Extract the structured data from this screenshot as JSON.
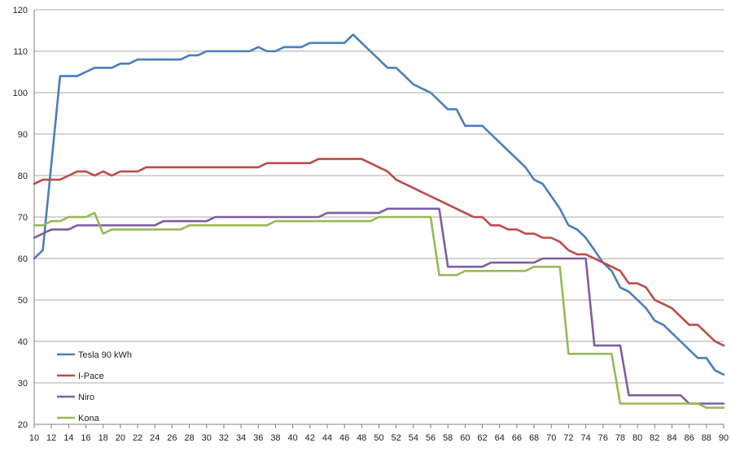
{
  "chart_data": {
    "type": "line",
    "title": "",
    "xlabel": "",
    "ylabel": "",
    "xlim": [
      10,
      90
    ],
    "ylim": [
      20,
      120
    ],
    "yticks": [
      20,
      30,
      40,
      50,
      60,
      70,
      80,
      90,
      100,
      110,
      120
    ],
    "xticks": [
      10,
      12,
      14,
      16,
      18,
      20,
      22,
      24,
      26,
      28,
      30,
      32,
      34,
      36,
      38,
      40,
      42,
      44,
      46,
      48,
      50,
      52,
      54,
      56,
      58,
      60,
      62,
      64,
      66,
      68,
      70,
      72,
      74,
      76,
      78,
      80,
      82,
      84,
      86,
      88,
      90
    ],
    "grid": "horizontal",
    "legend_position": "bottom-left",
    "series": [
      {
        "name": "Tesla 90 kWh",
        "color": "#4a7ebb",
        "points": [
          [
            10,
            60
          ],
          [
            11,
            62
          ],
          [
            12,
            83
          ],
          [
            13,
            104
          ],
          [
            14,
            104
          ],
          [
            15,
            104
          ],
          [
            16,
            105
          ],
          [
            17,
            106
          ],
          [
            18,
            106
          ],
          [
            19,
            106
          ],
          [
            20,
            107
          ],
          [
            21,
            107
          ],
          [
            22,
            108
          ],
          [
            23,
            108
          ],
          [
            24,
            108
          ],
          [
            25,
            108
          ],
          [
            26,
            108
          ],
          [
            27,
            108
          ],
          [
            28,
            109
          ],
          [
            29,
            109
          ],
          [
            30,
            110
          ],
          [
            31,
            110
          ],
          [
            32,
            110
          ],
          [
            33,
            110
          ],
          [
            34,
            110
          ],
          [
            35,
            110
          ],
          [
            36,
            111
          ],
          [
            37,
            110
          ],
          [
            38,
            110
          ],
          [
            39,
            111
          ],
          [
            40,
            111
          ],
          [
            41,
            111
          ],
          [
            42,
            112
          ],
          [
            43,
            112
          ],
          [
            44,
            112
          ],
          [
            45,
            112
          ],
          [
            46,
            112
          ],
          [
            47,
            114
          ],
          [
            48,
            112
          ],
          [
            49,
            110
          ],
          [
            50,
            108
          ],
          [
            51,
            106
          ],
          [
            52,
            106
          ],
          [
            53,
            104
          ],
          [
            54,
            102
          ],
          [
            55,
            101
          ],
          [
            56,
            100
          ],
          [
            57,
            98
          ],
          [
            58,
            96
          ],
          [
            59,
            96
          ],
          [
            60,
            92
          ],
          [
            61,
            92
          ],
          [
            62,
            92
          ],
          [
            63,
            90
          ],
          [
            64,
            88
          ],
          [
            65,
            86
          ],
          [
            66,
            84
          ],
          [
            67,
            82
          ],
          [
            68,
            79
          ],
          [
            69,
            78
          ],
          [
            70,
            75
          ],
          [
            71,
            72
          ],
          [
            72,
            68
          ],
          [
            73,
            67
          ],
          [
            74,
            65
          ],
          [
            75,
            62
          ],
          [
            76,
            59
          ],
          [
            77,
            57
          ],
          [
            78,
            53
          ],
          [
            79,
            52
          ],
          [
            80,
            50
          ],
          [
            81,
            48
          ],
          [
            82,
            45
          ],
          [
            83,
            44
          ],
          [
            84,
            42
          ],
          [
            85,
            40
          ],
          [
            86,
            38
          ],
          [
            87,
            36
          ],
          [
            88,
            36
          ],
          [
            89,
            33
          ],
          [
            90,
            32
          ]
        ]
      },
      {
        "name": "I-Pace",
        "color": "#be4b48",
        "points": [
          [
            10,
            78
          ],
          [
            11,
            79
          ],
          [
            12,
            79
          ],
          [
            13,
            79
          ],
          [
            14,
            80
          ],
          [
            15,
            81
          ],
          [
            16,
            81
          ],
          [
            17,
            80
          ],
          [
            18,
            81
          ],
          [
            19,
            80
          ],
          [
            20,
            81
          ],
          [
            21,
            81
          ],
          [
            22,
            81
          ],
          [
            23,
            82
          ],
          [
            24,
            82
          ],
          [
            25,
            82
          ],
          [
            26,
            82
          ],
          [
            27,
            82
          ],
          [
            28,
            82
          ],
          [
            29,
            82
          ],
          [
            30,
            82
          ],
          [
            31,
            82
          ],
          [
            32,
            82
          ],
          [
            33,
            82
          ],
          [
            34,
            82
          ],
          [
            35,
            82
          ],
          [
            36,
            82
          ],
          [
            37,
            83
          ],
          [
            38,
            83
          ],
          [
            39,
            83
          ],
          [
            40,
            83
          ],
          [
            41,
            83
          ],
          [
            42,
            83
          ],
          [
            43,
            84
          ],
          [
            44,
            84
          ],
          [
            45,
            84
          ],
          [
            46,
            84
          ],
          [
            47,
            84
          ],
          [
            48,
            84
          ],
          [
            49,
            83
          ],
          [
            50,
            82
          ],
          [
            51,
            81
          ],
          [
            52,
            79
          ],
          [
            53,
            78
          ],
          [
            54,
            77
          ],
          [
            55,
            76
          ],
          [
            56,
            75
          ],
          [
            57,
            74
          ],
          [
            58,
            73
          ],
          [
            59,
            72
          ],
          [
            60,
            71
          ],
          [
            61,
            70
          ],
          [
            62,
            70
          ],
          [
            63,
            68
          ],
          [
            64,
            68
          ],
          [
            65,
            67
          ],
          [
            66,
            67
          ],
          [
            67,
            66
          ],
          [
            68,
            66
          ],
          [
            69,
            65
          ],
          [
            70,
            65
          ],
          [
            71,
            64
          ],
          [
            72,
            62
          ],
          [
            73,
            61
          ],
          [
            74,
            61
          ],
          [
            75,
            60
          ],
          [
            76,
            59
          ],
          [
            77,
            58
          ],
          [
            78,
            57
          ],
          [
            79,
            54
          ],
          [
            80,
            54
          ],
          [
            81,
            53
          ],
          [
            82,
            50
          ],
          [
            83,
            49
          ],
          [
            84,
            48
          ],
          [
            85,
            46
          ],
          [
            86,
            44
          ],
          [
            87,
            44
          ],
          [
            88,
            42
          ],
          [
            89,
            40
          ],
          [
            90,
            39
          ]
        ]
      },
      {
        "name": "Niro",
        "color": "#7d5fa0",
        "points": [
          [
            10,
            65
          ],
          [
            11,
            66
          ],
          [
            12,
            67
          ],
          [
            13,
            67
          ],
          [
            14,
            67
          ],
          [
            15,
            68
          ],
          [
            16,
            68
          ],
          [
            17,
            68
          ],
          [
            18,
            68
          ],
          [
            19,
            68
          ],
          [
            20,
            68
          ],
          [
            21,
            68
          ],
          [
            22,
            68
          ],
          [
            23,
            68
          ],
          [
            24,
            68
          ],
          [
            25,
            69
          ],
          [
            26,
            69
          ],
          [
            27,
            69
          ],
          [
            28,
            69
          ],
          [
            29,
            69
          ],
          [
            30,
            69
          ],
          [
            31,
            70
          ],
          [
            32,
            70
          ],
          [
            33,
            70
          ],
          [
            34,
            70
          ],
          [
            35,
            70
          ],
          [
            36,
            70
          ],
          [
            37,
            70
          ],
          [
            38,
            70
          ],
          [
            39,
            70
          ],
          [
            40,
            70
          ],
          [
            41,
            70
          ],
          [
            42,
            70
          ],
          [
            43,
            70
          ],
          [
            44,
            71
          ],
          [
            45,
            71
          ],
          [
            46,
            71
          ],
          [
            47,
            71
          ],
          [
            48,
            71
          ],
          [
            49,
            71
          ],
          [
            50,
            71
          ],
          [
            51,
            72
          ],
          [
            52,
            72
          ],
          [
            53,
            72
          ],
          [
            54,
            72
          ],
          [
            55,
            72
          ],
          [
            56,
            72
          ],
          [
            57,
            72
          ],
          [
            58,
            58
          ],
          [
            59,
            58
          ],
          [
            60,
            58
          ],
          [
            61,
            58
          ],
          [
            62,
            58
          ],
          [
            63,
            59
          ],
          [
            64,
            59
          ],
          [
            65,
            59
          ],
          [
            66,
            59
          ],
          [
            67,
            59
          ],
          [
            68,
            59
          ],
          [
            69,
            60
          ],
          [
            70,
            60
          ],
          [
            71,
            60
          ],
          [
            72,
            60
          ],
          [
            73,
            60
          ],
          [
            74,
            60
          ],
          [
            75,
            39
          ],
          [
            76,
            39
          ],
          [
            77,
            39
          ],
          [
            78,
            39
          ],
          [
            79,
            27
          ],
          [
            80,
            27
          ],
          [
            81,
            27
          ],
          [
            82,
            27
          ],
          [
            83,
            27
          ],
          [
            84,
            27
          ],
          [
            85,
            27
          ],
          [
            86,
            25
          ],
          [
            87,
            25
          ],
          [
            88,
            25
          ],
          [
            89,
            25
          ],
          [
            90,
            25
          ]
        ]
      },
      {
        "name": "Kona",
        "color": "#98b954",
        "points": [
          [
            10,
            68
          ],
          [
            11,
            68
          ],
          [
            12,
            69
          ],
          [
            13,
            69
          ],
          [
            14,
            70
          ],
          [
            15,
            70
          ],
          [
            16,
            70
          ],
          [
            17,
            71
          ],
          [
            18,
            66
          ],
          [
            19,
            67
          ],
          [
            20,
            67
          ],
          [
            21,
            67
          ],
          [
            22,
            67
          ],
          [
            23,
            67
          ],
          [
            24,
            67
          ],
          [
            25,
            67
          ],
          [
            26,
            67
          ],
          [
            27,
            67
          ],
          [
            28,
            68
          ],
          [
            29,
            68
          ],
          [
            30,
            68
          ],
          [
            31,
            68
          ],
          [
            32,
            68
          ],
          [
            33,
            68
          ],
          [
            34,
            68
          ],
          [
            35,
            68
          ],
          [
            36,
            68
          ],
          [
            37,
            68
          ],
          [
            38,
            69
          ],
          [
            39,
            69
          ],
          [
            40,
            69
          ],
          [
            41,
            69
          ],
          [
            42,
            69
          ],
          [
            43,
            69
          ],
          [
            44,
            69
          ],
          [
            45,
            69
          ],
          [
            46,
            69
          ],
          [
            47,
            69
          ],
          [
            48,
            69
          ],
          [
            49,
            69
          ],
          [
            50,
            70
          ],
          [
            51,
            70
          ],
          [
            52,
            70
          ],
          [
            53,
            70
          ],
          [
            54,
            70
          ],
          [
            55,
            70
          ],
          [
            56,
            70
          ],
          [
            57,
            56
          ],
          [
            58,
            56
          ],
          [
            59,
            56
          ],
          [
            60,
            57
          ],
          [
            61,
            57
          ],
          [
            62,
            57
          ],
          [
            63,
            57
          ],
          [
            64,
            57
          ],
          [
            65,
            57
          ],
          [
            66,
            57
          ],
          [
            67,
            57
          ],
          [
            68,
            58
          ],
          [
            69,
            58
          ],
          [
            70,
            58
          ],
          [
            71,
            58
          ],
          [
            72,
            37
          ],
          [
            73,
            37
          ],
          [
            74,
            37
          ],
          [
            75,
            37
          ],
          [
            76,
            37
          ],
          [
            77,
            37
          ],
          [
            78,
            25
          ],
          [
            79,
            25
          ],
          [
            80,
            25
          ],
          [
            81,
            25
          ],
          [
            82,
            25
          ],
          [
            83,
            25
          ],
          [
            84,
            25
          ],
          [
            85,
            25
          ],
          [
            86,
            25
          ],
          [
            87,
            25
          ],
          [
            88,
            24
          ],
          [
            89,
            24
          ],
          [
            90,
            24
          ]
        ]
      }
    ]
  }
}
